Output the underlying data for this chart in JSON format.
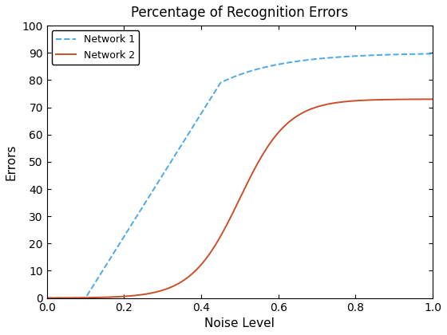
{
  "title": "Percentage of Recognition Errors",
  "xlabel": "Noise Level",
  "ylabel": "Errors",
  "xlim": [
    0,
    1
  ],
  "ylim": [
    0,
    100
  ],
  "xticks": [
    0,
    0.2,
    0.4,
    0.6,
    0.8,
    1.0
  ],
  "yticks": [
    0,
    10,
    20,
    30,
    40,
    50,
    60,
    70,
    80,
    90,
    100
  ],
  "network1_color": "#4da9e8",
  "network2_color": "#c8502a",
  "network1_label": "Network 1",
  "network2_label": "Network 2",
  "network1_linestyle": "--",
  "network2_linestyle": "-",
  "linewidth": 1.4,
  "legend_loc": "upper left",
  "title_fontsize": 12,
  "axis_fontsize": 11,
  "legend_fontsize": 9,
  "background_color": "#ffffff"
}
